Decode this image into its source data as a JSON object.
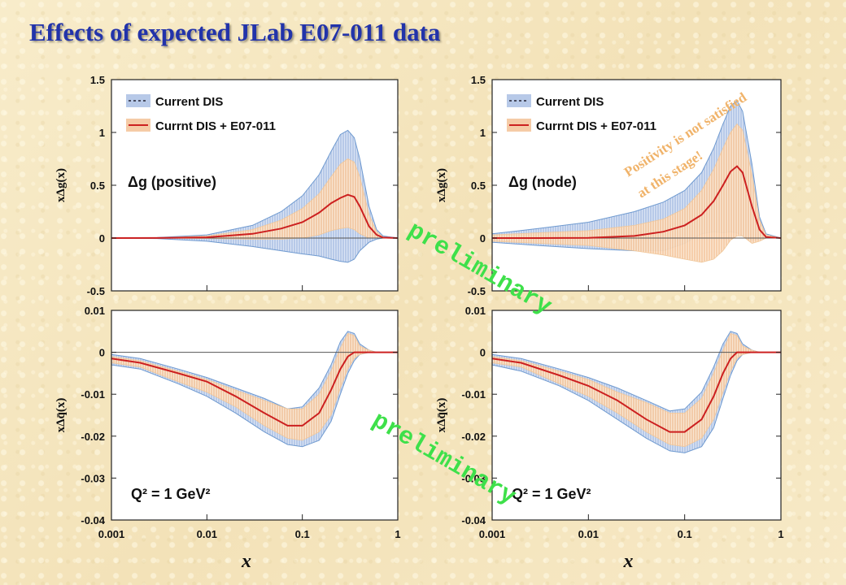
{
  "page": {
    "title": "Effects of expected JLab E07-011 data",
    "preliminary_text": "preliminary",
    "positivity_note_line1": "Positivity is not satisfied",
    "positivity_note_line2": "at this stage!",
    "band_colors": {
      "dis_fill": "#b7c9e8",
      "dis_edge": "#6f9ad0",
      "e07_fill": "#f5cba6",
      "central": "#cc2020",
      "zero_line": "#555555"
    }
  },
  "chart_data": [
    {
      "type": "area",
      "ylabel": "xΔg(x)",
      "label": "Δg (positive)",
      "xscale": "log",
      "xlim": [
        0.001,
        1
      ],
      "ylim": [
        -0.5,
        1.5
      ],
      "yticks": [
        "1.5",
        "1",
        "0.5",
        "0",
        "-0.5"
      ],
      "legend": [
        "Current DIS",
        "Currnt DIS + E07-011"
      ],
      "x": [
        0.001,
        0.003,
        0.01,
        0.03,
        0.06,
        0.1,
        0.15,
        0.2,
        0.25,
        0.3,
        0.35,
        0.4,
        0.5,
        0.6,
        0.7,
        1.0
      ],
      "series": [
        {
          "name": "Current DIS",
          "upper": [
            0.0,
            0.005,
            0.03,
            0.12,
            0.25,
            0.4,
            0.6,
            0.82,
            0.98,
            1.02,
            0.95,
            0.75,
            0.3,
            0.08,
            0.02,
            0.0
          ],
          "lower": [
            0.0,
            -0.005,
            -0.03,
            -0.08,
            -0.12,
            -0.15,
            -0.17,
            -0.2,
            -0.22,
            -0.23,
            -0.2,
            -0.12,
            -0.04,
            -0.01,
            0.0,
            0.0
          ]
        },
        {
          "name": "Currnt DIS + E07-011",
          "upper": [
            0.0,
            0.003,
            0.02,
            0.08,
            0.17,
            0.28,
            0.42,
            0.58,
            0.7,
            0.75,
            0.72,
            0.58,
            0.22,
            0.06,
            0.01,
            0.0
          ],
          "central": [
            0.0,
            0.001,
            0.007,
            0.04,
            0.09,
            0.15,
            0.24,
            0.33,
            0.38,
            0.41,
            0.39,
            0.3,
            0.11,
            0.03,
            0.005,
            0.0
          ],
          "lower": [
            0.0,
            -0.001,
            -0.005,
            -0.01,
            -0.01,
            0.0,
            0.03,
            0.07,
            0.09,
            0.1,
            0.08,
            0.04,
            0.0,
            0.0,
            0.0,
            0.0
          ]
        }
      ]
    },
    {
      "type": "area",
      "ylabel": "xΔg(x)",
      "label": "Δg (node)",
      "xscale": "log",
      "xlim": [
        0.001,
        1
      ],
      "ylim": [
        -0.5,
        1.5
      ],
      "yticks": [
        "1.5",
        "1",
        "0.5",
        "0",
        "-0.5"
      ],
      "legend": [
        "Current DIS",
        "Currnt DIS + E07-011"
      ],
      "x": [
        0.001,
        0.003,
        0.01,
        0.03,
        0.06,
        0.1,
        0.15,
        0.2,
        0.25,
        0.3,
        0.35,
        0.4,
        0.5,
        0.6,
        0.7,
        1.0
      ],
      "series": [
        {
          "name": "Current DIS",
          "upper": [
            0.04,
            0.09,
            0.15,
            0.25,
            0.34,
            0.45,
            0.62,
            0.85,
            1.08,
            1.25,
            1.3,
            1.2,
            0.7,
            0.2,
            0.04,
            0.0
          ],
          "lower": [
            -0.04,
            -0.07,
            -0.1,
            -0.12,
            -0.12,
            -0.05,
            0.04,
            0.06,
            0.05,
            0.06,
            0.05,
            0.02,
            -0.02,
            -0.01,
            0.0,
            0.0
          ]
        },
        {
          "name": "Currnt DIS + E07-011",
          "upper": [
            0.03,
            0.05,
            0.07,
            0.12,
            0.18,
            0.28,
            0.45,
            0.65,
            0.85,
            1.0,
            1.08,
            1.02,
            0.6,
            0.17,
            0.03,
            0.0
          ],
          "central": [
            0.0,
            0.0,
            0.002,
            0.02,
            0.06,
            0.12,
            0.22,
            0.35,
            0.5,
            0.63,
            0.68,
            0.62,
            0.3,
            0.08,
            0.01,
            0.0
          ],
          "lower": [
            -0.03,
            -0.05,
            -0.07,
            -0.12,
            -0.16,
            -0.2,
            -0.23,
            -0.2,
            -0.12,
            -0.02,
            0.02,
            0.02,
            -0.05,
            -0.03,
            0.0,
            0.0
          ]
        }
      ]
    },
    {
      "type": "area",
      "ylabel": "xΔq̄(x)",
      "label": "Q² = 1 GeV²",
      "xscale": "log",
      "xlim": [
        0.001,
        1
      ],
      "ylim": [
        -0.04,
        0.01
      ],
      "yticks": [
        "0.01",
        "0",
        "-0.01",
        "-0.02",
        "-0.03",
        "-0.04"
      ],
      "xticks": [
        "0.001",
        "0.01",
        "0.1",
        "1"
      ],
      "xlabel": "x",
      "x": [
        0.001,
        0.002,
        0.005,
        0.01,
        0.02,
        0.04,
        0.07,
        0.1,
        0.15,
        0.2,
        0.25,
        0.3,
        0.35,
        0.4,
        0.5,
        0.6,
        1.0
      ],
      "series": [
        {
          "name": "Current DIS",
          "upper": [
            -0.0005,
            -0.0015,
            -0.004,
            -0.006,
            -0.0085,
            -0.011,
            -0.0135,
            -0.013,
            -0.0085,
            -0.003,
            0.0025,
            0.005,
            0.0045,
            0.002,
            0.0005,
            0.0,
            0.0
          ],
          "lower": [
            -0.003,
            -0.004,
            -0.0075,
            -0.0105,
            -0.0145,
            -0.019,
            -0.022,
            -0.0225,
            -0.021,
            -0.0165,
            -0.01,
            -0.005,
            -0.002,
            -0.0005,
            0.0,
            0.0,
            0.0
          ]
        },
        {
          "name": "Currnt DIS + E07-011",
          "upper": [
            -0.001,
            -0.002,
            -0.0045,
            -0.0065,
            -0.009,
            -0.0115,
            -0.0135,
            -0.0135,
            -0.01,
            -0.0045,
            0.001,
            0.0045,
            0.004,
            0.0015,
            0.0005,
            0.0,
            0.0
          ],
          "central": [
            -0.0015,
            -0.0025,
            -0.005,
            -0.007,
            -0.0105,
            -0.0145,
            -0.0175,
            -0.0175,
            -0.0145,
            -0.009,
            -0.004,
            -0.001,
            0.0,
            0.0,
            0.0,
            0.0,
            0.0
          ],
          "lower": [
            -0.0025,
            -0.0035,
            -0.007,
            -0.0095,
            -0.013,
            -0.0175,
            -0.0205,
            -0.021,
            -0.019,
            -0.015,
            -0.0085,
            -0.004,
            -0.0015,
            -0.0005,
            0.0,
            0.0,
            0.0
          ]
        }
      ]
    },
    {
      "type": "area",
      "ylabel": "xΔq̄(x)",
      "label": "Q² = 1 GeV²",
      "xscale": "log",
      "xlim": [
        0.001,
        1
      ],
      "ylim": [
        -0.04,
        0.01
      ],
      "yticks": [
        "0.01",
        "0",
        "-0.01",
        "-0.02",
        "-0.03",
        "-0.04"
      ],
      "xticks": [
        "0.001",
        "0.01",
        "0.1",
        "1"
      ],
      "xlabel": "x",
      "x": [
        0.001,
        0.002,
        0.005,
        0.01,
        0.02,
        0.04,
        0.07,
        0.1,
        0.15,
        0.2,
        0.25,
        0.3,
        0.35,
        0.4,
        0.5,
        0.6,
        1.0
      ],
      "series": [
        {
          "name": "Current DIS",
          "upper": [
            -0.0005,
            -0.0015,
            -0.004,
            -0.006,
            -0.0085,
            -0.0115,
            -0.014,
            -0.0135,
            -0.0095,
            -0.0035,
            0.002,
            0.005,
            0.0045,
            0.002,
            0.0005,
            0.0,
            0.0
          ],
          "lower": [
            -0.003,
            -0.0045,
            -0.008,
            -0.0115,
            -0.016,
            -0.0205,
            -0.0235,
            -0.024,
            -0.0225,
            -0.018,
            -0.011,
            -0.0055,
            -0.002,
            -0.0005,
            0.0,
            0.0,
            0.0
          ]
        },
        {
          "name": "Currnt DIS + E07-011",
          "upper": [
            -0.001,
            -0.002,
            -0.0045,
            -0.0065,
            -0.0095,
            -0.012,
            -0.0145,
            -0.0145,
            -0.011,
            -0.005,
            0.0005,
            0.0045,
            0.004,
            0.0015,
            0.0005,
            0.0,
            0.0
          ],
          "central": [
            -0.0015,
            -0.0025,
            -0.0055,
            -0.008,
            -0.0115,
            -0.016,
            -0.019,
            -0.019,
            -0.016,
            -0.0105,
            -0.005,
            -0.0015,
            0.0,
            0.0,
            0.0,
            0.0,
            0.0
          ],
          "lower": [
            -0.0025,
            -0.0035,
            -0.0075,
            -0.0105,
            -0.0145,
            -0.019,
            -0.022,
            -0.0225,
            -0.0205,
            -0.016,
            -0.0095,
            -0.0045,
            -0.0015,
            -0.0005,
            0.0,
            0.0,
            0.0
          ]
        }
      ]
    }
  ]
}
